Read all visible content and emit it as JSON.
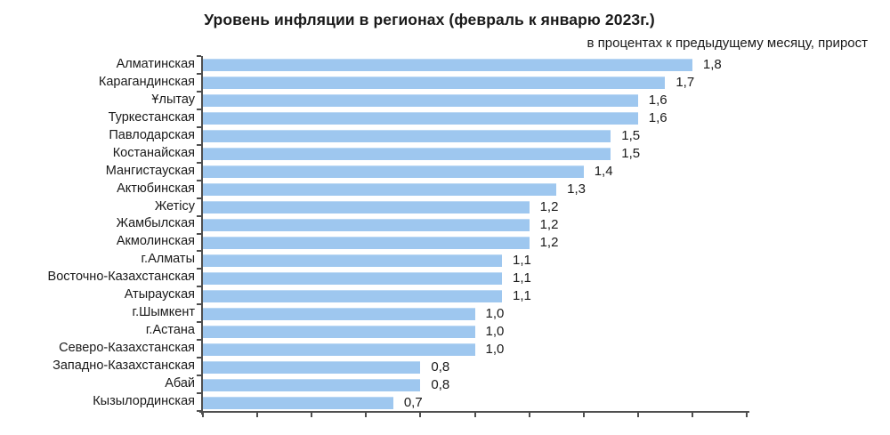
{
  "chart_data": {
    "type": "bar",
    "orientation": "horizontal",
    "title": "Уровень инфляции в регионах (февраль к январю 2023г.)",
    "subtitle": "в процентах к предыдущему месяцу, прирост",
    "categories": [
      "Алматинская",
      "Карагандинская",
      "Ұлытау",
      "Туркестанская",
      "Павлодарская",
      "Костанайская",
      "Мангистауская",
      "Актюбинская",
      "Жетісу",
      "Жамбылская",
      "Акмолинская",
      "г.Алматы",
      "Восточно-Казахстанская",
      "Атырауская",
      "г.Шымкент",
      "г.Астана",
      "Северо-Казахстанская",
      "Западно-Казахстанская",
      "Абай",
      "Кызылординская"
    ],
    "values": [
      1.8,
      1.7,
      1.6,
      1.6,
      1.5,
      1.5,
      1.4,
      1.3,
      1.2,
      1.2,
      1.2,
      1.1,
      1.1,
      1.1,
      1.0,
      1.0,
      1.0,
      0.8,
      0.8,
      0.7
    ],
    "value_labels": [
      "1,8",
      "1,7",
      "1,6",
      "1,6",
      "1,5",
      "1,5",
      "1,4",
      "1,3",
      "1,2",
      "1,2",
      "1,2",
      "1,1",
      "1,1",
      "1,1",
      "1,0",
      "1,0",
      "1,0",
      "0,8",
      "0,8",
      "0,7"
    ],
    "xlabel": "",
    "ylabel": "",
    "xlim": [
      0,
      2.0
    ],
    "x_tick_step": 0.2,
    "grid": false,
    "legend": false,
    "colors": {
      "bar": "#9EC7EF",
      "axis": "#4F4F4F",
      "text": "#1A1A1A"
    }
  }
}
